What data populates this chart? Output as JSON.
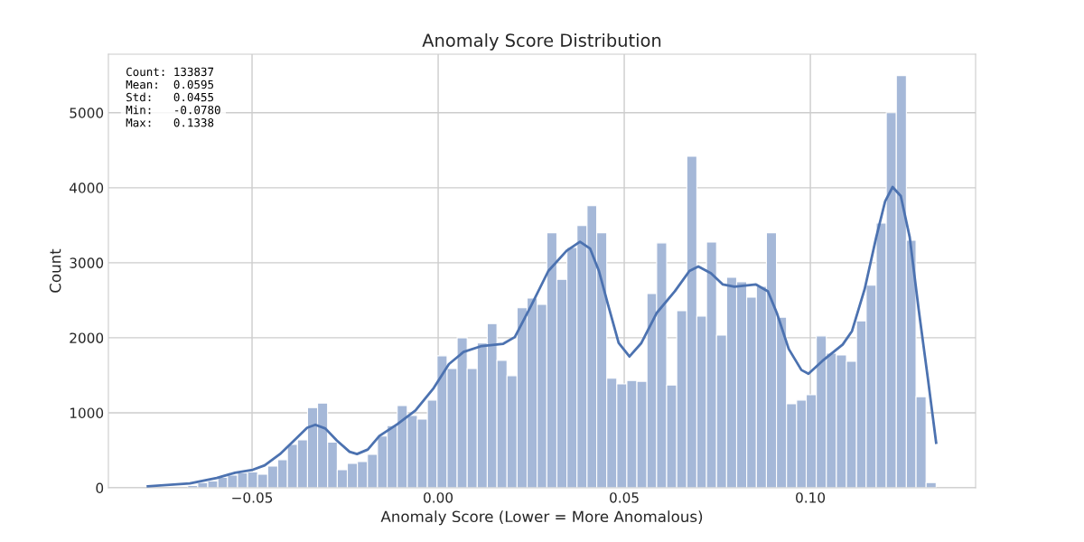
{
  "chart_data": {
    "type": "histogram",
    "title": "Anomaly Score Distribution",
    "xlabel": "Anomaly Score (Lower = More Anomalous)",
    "ylabel": "Count",
    "annotations": [
      "Count: 133837\nMean:  0.0595\nStd:   0.0455\nMin:   -0.0780\nMax:   0.1338"
    ],
    "bins": [
      -0.078,
      -0.0753,
      -0.0726,
      -0.07,
      -0.0673,
      -0.0646,
      -0.0619,
      -0.0592,
      -0.0566,
      -0.0539,
      -0.0512,
      -0.0485,
      -0.0458,
      -0.0431,
      -0.0405,
      -0.0378,
      -0.0351,
      -0.0324,
      -0.0297,
      -0.0271,
      -0.0244,
      -0.0217,
      -0.019,
      -0.0163,
      -0.0137,
      -0.011,
      -0.0083,
      -0.0056,
      -0.0029,
      -0.0003,
      0.0024,
      0.0051,
      0.0078,
      0.0105,
      0.0132,
      0.0158,
      0.0185,
      0.0212,
      0.0239,
      0.0266,
      0.0292,
      0.0319,
      0.0346,
      0.0373,
      0.04,
      0.0426,
      0.0453,
      0.048,
      0.0507,
      0.0534,
      0.0561,
      0.0587,
      0.0614,
      0.0641,
      0.0668,
      0.0695,
      0.0721,
      0.0748,
      0.0775,
      0.0802,
      0.0829,
      0.0855,
      0.0882,
      0.0909,
      0.0936,
      0.0963,
      0.0989,
      0.1016,
      0.1043,
      0.107,
      0.1097,
      0.1124,
      0.115,
      0.1177,
      0.1204,
      0.1231,
      0.1258,
      0.1284,
      0.1311,
      0.1338
    ],
    "series": [
      {
        "color": "#a5b8d8",
        "values": [
          null,
          null,
          null,
          null,
          30,
          70,
          90,
          140,
          170,
          200,
          210,
          180,
          290,
          375,
          580,
          640,
          1070,
          1130,
          610,
          240,
          325,
          350,
          445,
          690,
          830,
          1095,
          965,
          915,
          1170,
          1760,
          1590,
          2000,
          1590,
          1930,
          2190,
          1700,
          1495,
          2400,
          2530,
          2445,
          3400,
          2780,
          3205,
          3495,
          3760,
          3400,
          1460,
          1385,
          1430,
          1420,
          2590,
          3265,
          1370,
          2360,
          4420,
          2290,
          3275,
          2035,
          2805,
          2745,
          2540,
          2685,
          3400,
          2275,
          1120,
          1170,
          1240,
          2025,
          1795,
          1770,
          1685,
          2225,
          2700,
          3530,
          5000,
          5495,
          3300,
          1215,
          70
        ]
      },
      {
        "type": "line",
        "color": "#4c72b0",
        "x": [
          -0.078,
          -0.0667,
          -0.0595,
          -0.0546,
          -0.0498,
          -0.0466,
          -0.0425,
          -0.0383,
          -0.0352,
          -0.033,
          -0.0303,
          -0.0272,
          -0.0238,
          -0.0218,
          -0.0189,
          -0.0158,
          -0.0109,
          -0.0061,
          -0.0012,
          0.0029,
          0.0068,
          0.0117,
          0.0175,
          0.0206,
          0.0248,
          0.0296,
          0.0345,
          0.0381,
          0.0408,
          0.0432,
          0.0456,
          0.0485,
          0.0514,
          0.0546,
          0.0587,
          0.0636,
          0.0675,
          0.0699,
          0.0733,
          0.0765,
          0.0796,
          0.0854,
          0.0886,
          0.091,
          0.0942,
          0.0976,
          0.0995,
          0.1032,
          0.1087,
          0.1112,
          0.1146,
          0.1177,
          0.1201,
          0.1221,
          0.1243,
          0.1267,
          0.1291,
          0.1316,
          0.1338
        ],
        "values": [
          20,
          60,
          130,
          200,
          240,
          300,
          450,
          650,
          800,
          840,
          790,
          630,
          480,
          450,
          510,
          690,
          850,
          1030,
          1330,
          1650,
          1810,
          1890,
          1920,
          2010,
          2410,
          2890,
          3160,
          3280,
          3190,
          2890,
          2450,
          1930,
          1750,
          1930,
          2330,
          2620,
          2890,
          2950,
          2860,
          2710,
          2680,
          2710,
          2620,
          2330,
          1850,
          1570,
          1520,
          1690,
          1910,
          2090,
          2650,
          3340,
          3820,
          4010,
          3890,
          3340,
          2380,
          1450,
          600
        ]
      }
    ],
    "xlim": [
      -0.0886,
      0.1444
    ],
    "xticks": [
      {
        "value": -0.05,
        "label": "−0.05"
      },
      {
        "value": 0.0,
        "label": "0.00"
      },
      {
        "value": 0.05,
        "label": "0.05"
      },
      {
        "value": 0.1,
        "label": "0.10"
      }
    ],
    "ylim": [
      0,
      5780
    ],
    "yticks": [
      0,
      1000,
      2000,
      3000,
      4000,
      5000
    ],
    "grid": true,
    "legend": false
  }
}
